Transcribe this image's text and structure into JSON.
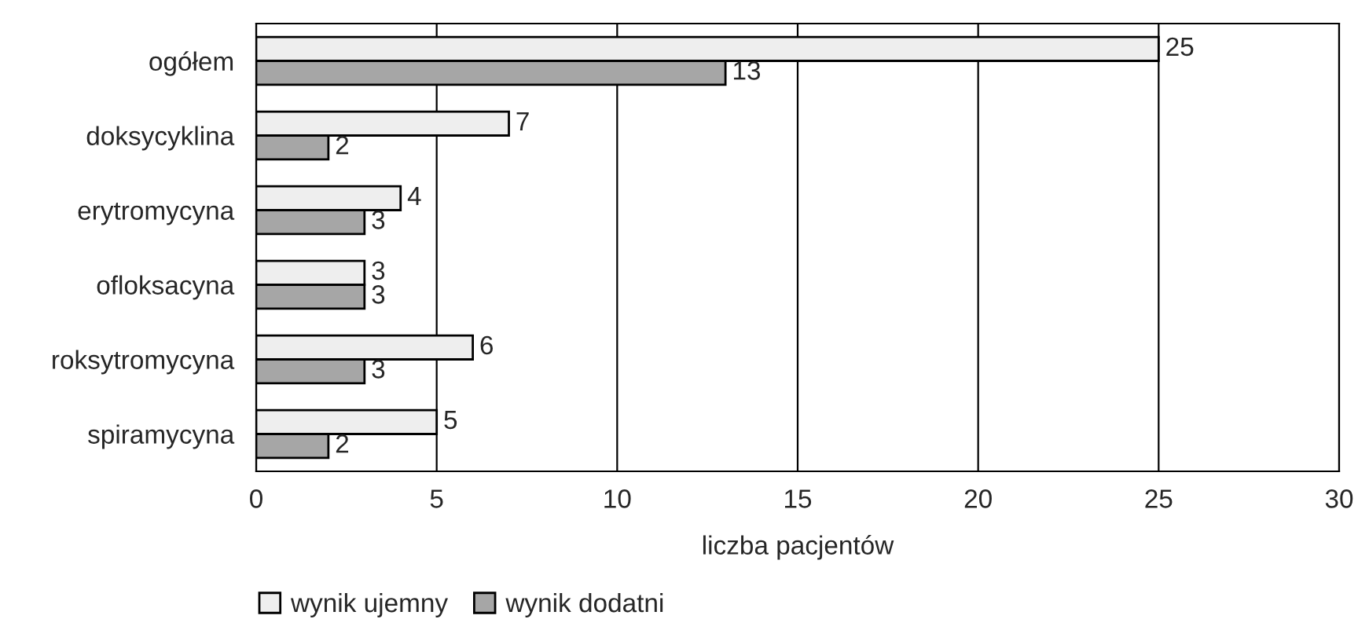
{
  "chart_data": {
    "type": "bar",
    "orientation": "horizontal",
    "xlabel": "liczba pacjentów",
    "categories": [
      "ogółem",
      "doksycyklina",
      "erytromycyna",
      "ofloksacyna",
      "roksytromycyna",
      "spiramycyna"
    ],
    "series": [
      {
        "name": "wynik ujemny",
        "color": "#eeeeee",
        "values": [
          25,
          7,
          4,
          3,
          6,
          5
        ]
      },
      {
        "name": "wynik dodatni",
        "color": "#a6a6a6",
        "values": [
          13,
          2,
          3,
          3,
          3,
          2
        ]
      }
    ],
    "xlim": [
      0,
      30
    ],
    "xticks": [
      0,
      5,
      10,
      15,
      20,
      25,
      30
    ],
    "grid": "x",
    "legend": "bottom",
    "data_labels": true
  }
}
